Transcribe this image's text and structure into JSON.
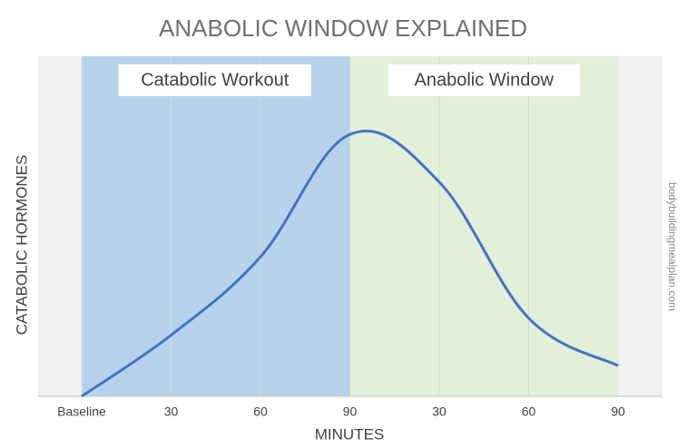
{
  "chart_data": {
    "type": "line",
    "title": "ANABOLIC WINDOW EXPLAINED",
    "xlabel": "MINUTES",
    "ylabel": "CATABOLIC HORMONES",
    "watermark": "bodybuildingmealplan.com",
    "categories": [
      "Baseline",
      "30",
      "60",
      "90",
      "30",
      "60",
      "90"
    ],
    "series": [
      {
        "color": "#4472c4",
        "values": [
          0,
          18,
          41,
          77,
          63,
          23,
          9
        ]
      }
    ],
    "regions": [
      {
        "label": "Catabolic Workout",
        "color": "#b7d3ec"
      },
      {
        "label": "Anabolic Window",
        "color": "#e2efd9"
      }
    ],
    "ylim": [
      0,
      100
    ],
    "grid": true
  }
}
